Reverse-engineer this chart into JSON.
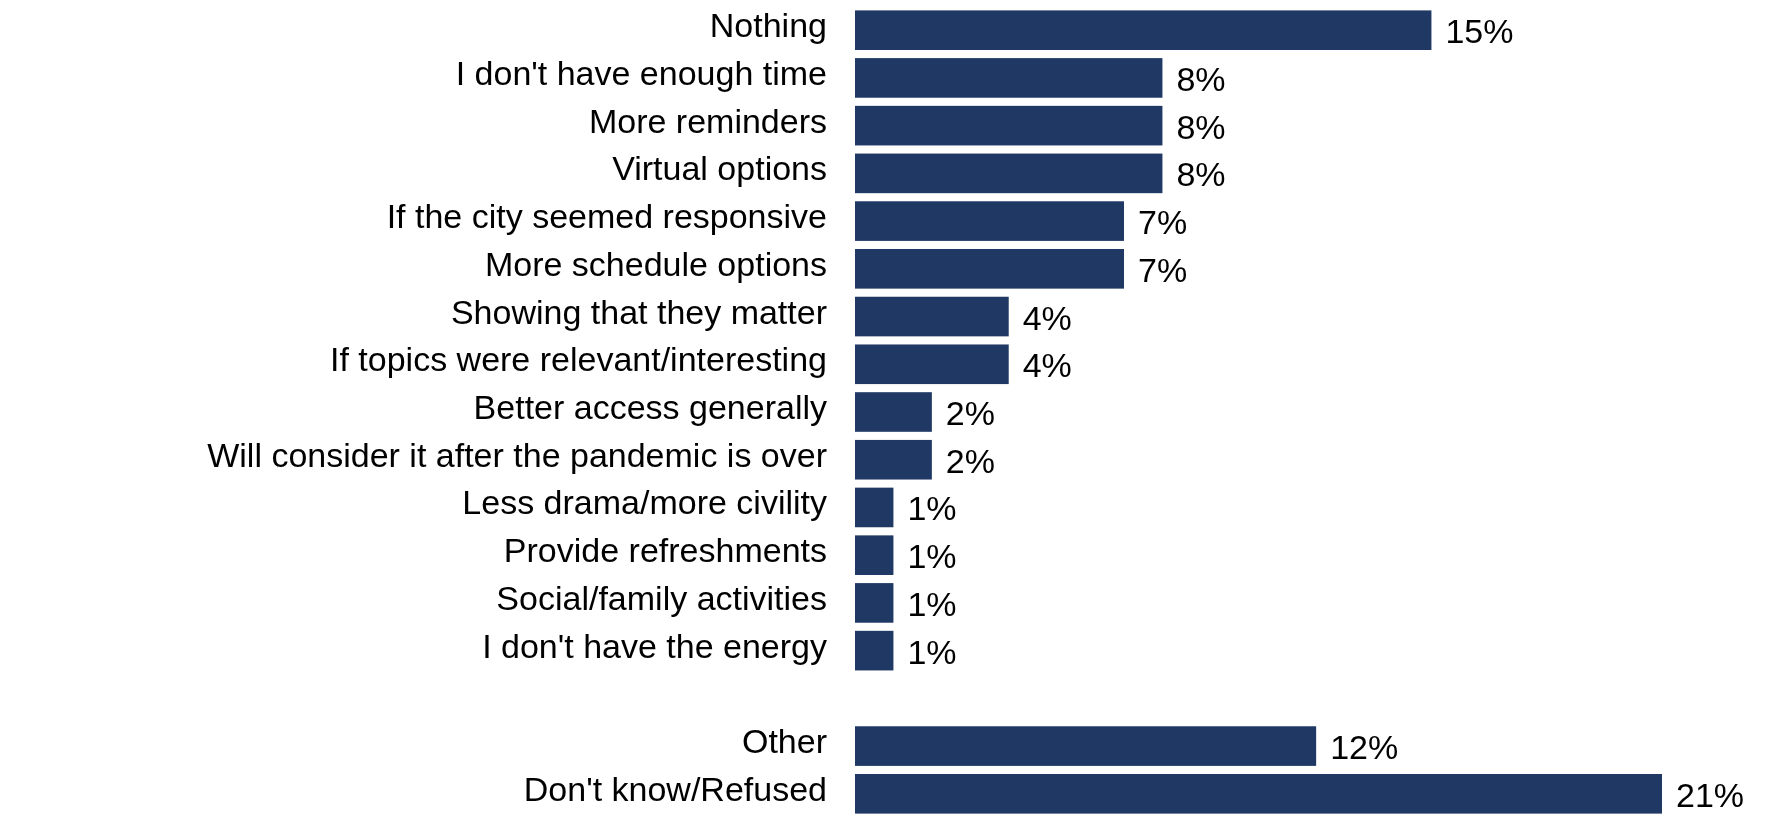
{
  "chart_data": {
    "type": "bar",
    "orientation": "horizontal",
    "color": "#1f3864",
    "categories": [
      "Nothing",
      "I don't have enough time",
      "More reminders",
      "Virtual options",
      "If the city seemed responsive",
      "More schedule options",
      "Showing that they matter",
      "If topics were relevant/interesting",
      "Better access generally",
      "Will consider it after the pandemic is over",
      "Less drama/more civility",
      "Provide refreshments",
      "Social/family activities",
      "I don't have the energy",
      null,
      "Other",
      "Don't know/Refused"
    ],
    "values": [
      15,
      8,
      8,
      8,
      7,
      7,
      4,
      4,
      2,
      2,
      1,
      1,
      1,
      1,
      null,
      12,
      21
    ],
    "value_labels": [
      "15%",
      "8%",
      "8%",
      "8%",
      "7%",
      "7%",
      "4%",
      "4%",
      "2%",
      "2%",
      "1%",
      "1%",
      "1%",
      "1%",
      null,
      "12%",
      "21%"
    ]
  }
}
